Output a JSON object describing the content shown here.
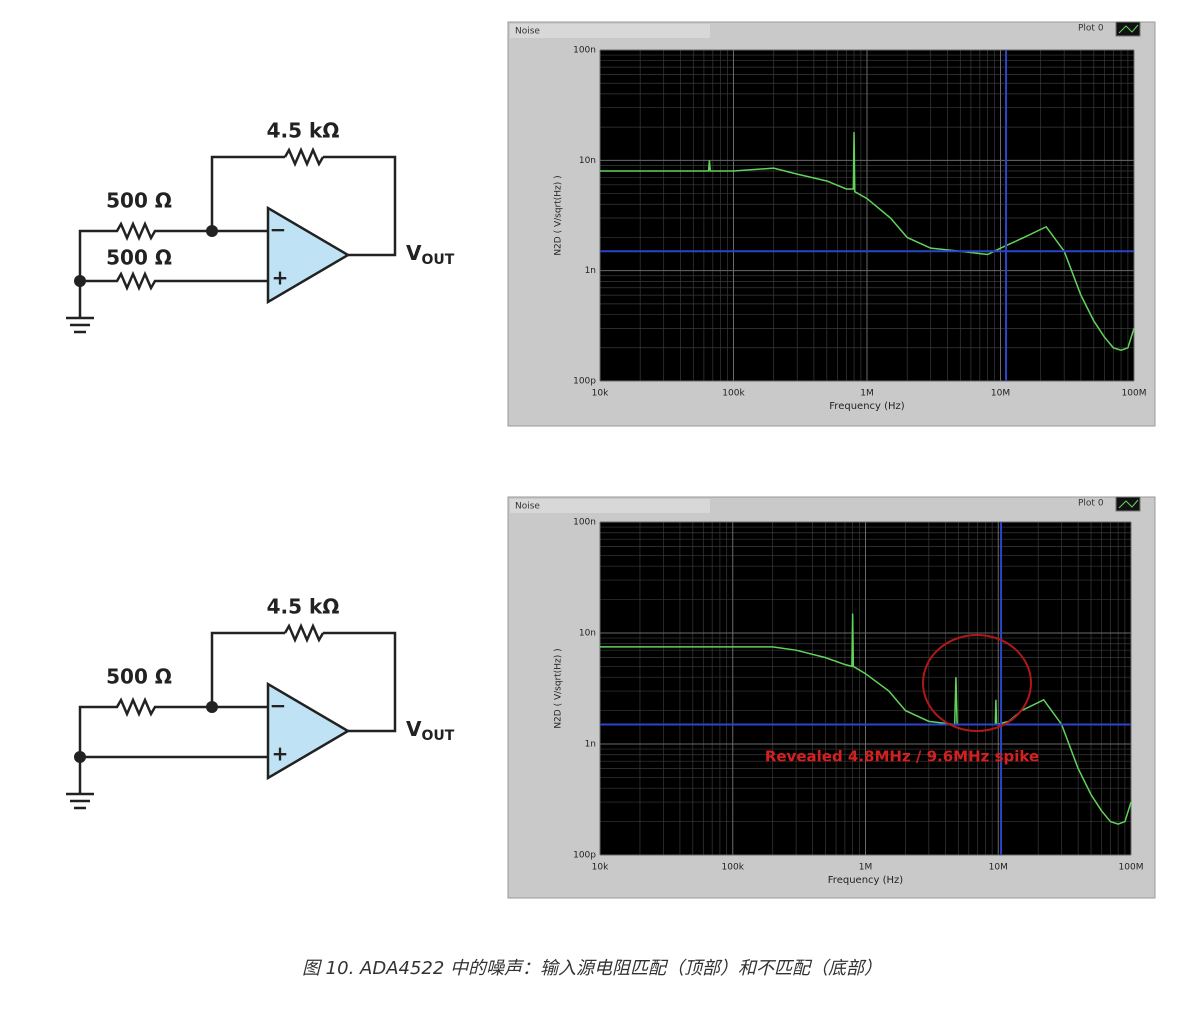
{
  "circuits": [
    {
      "feedback": "4.5 kΩ",
      "input": "500 Ω",
      "ground": "500 Ω",
      "inverting": "−",
      "noninverting": "+",
      "output": "V",
      "output_sub": "OUT"
    },
    {
      "feedback": "4.5 kΩ",
      "input": "500 Ω",
      "inverting": "−",
      "noninverting": "+",
      "output": "V",
      "output_sub": "OUT"
    }
  ],
  "chart_data": [
    {
      "type": "line",
      "title": "Noise",
      "xlabel": "Frequency (Hz)",
      "ylabel": "N2D ( V/sqrt(Hz) )",
      "xscale": "log",
      "yscale": "log",
      "grid": true,
      "minor_grid": true,
      "background": "#000000",
      "xlim": [
        10000,
        100000000
      ],
      "ylim": [
        1e-10,
        1e-07
      ],
      "xticks": [
        {
          "value": 10000,
          "label": "10k"
        },
        {
          "value": 100000,
          "label": "100k"
        },
        {
          "value": 1000000,
          "label": "1M"
        },
        {
          "value": 10000000,
          "label": "10M"
        },
        {
          "value": 100000000,
          "label": "100M"
        }
      ],
      "yticks": [
        {
          "value": 1e-10,
          "label": "100p"
        },
        {
          "value": 1e-09,
          "label": "1n"
        },
        {
          "value": 1e-08,
          "label": "10n"
        },
        {
          "value": 1e-07,
          "label": "100n"
        }
      ],
      "cursor": {
        "x": 11000000,
        "y": 1.5e-09,
        "color": "#2b45c8"
      },
      "x": [
        10000,
        20000,
        50000,
        65000,
        66000,
        67000,
        100000,
        200000,
        300000,
        500000,
        700000,
        790000,
        800000,
        810000,
        1000000,
        1500000,
        2000000,
        3000000,
        5000000,
        8000000,
        10000000,
        15000000,
        22000000,
        30000000,
        40000000,
        50000000,
        60000000,
        70000000,
        80000000,
        90000000,
        100000000
      ],
      "series": [
        {
          "name": "Plot 0",
          "color": "#62d35a",
          "values": [
            8e-09,
            8e-09,
            8e-09,
            8e-09,
            1e-08,
            8e-09,
            8e-09,
            8.5e-09,
            7.5e-09,
            6.5e-09,
            5.5e-09,
            5.5e-09,
            1.8e-08,
            5.2e-09,
            4.5e-09,
            3e-09,
            2e-09,
            1.6e-09,
            1.5e-09,
            1.4e-09,
            1.6e-09,
            2e-09,
            2.5e-09,
            1.5e-09,
            6e-10,
            3.5e-10,
            2.5e-10,
            2e-10,
            1.9e-10,
            2e-10,
            3e-10
          ]
        }
      ]
    },
    {
      "type": "line",
      "title": "Noise",
      "xlabel": "Frequency (Hz)",
      "ylabel": "N2D ( V/sqrt(Hz) )",
      "xscale": "log",
      "yscale": "log",
      "grid": true,
      "minor_grid": true,
      "background": "#000000",
      "xlim": [
        10000,
        100000000
      ],
      "ylim": [
        1e-10,
        1e-07
      ],
      "xticks": [
        {
          "value": 10000,
          "label": "10k"
        },
        {
          "value": 100000,
          "label": "100k"
        },
        {
          "value": 1000000,
          "label": "1M"
        },
        {
          "value": 10000000,
          "label": "10M"
        },
        {
          "value": 100000000,
          "label": "100M"
        }
      ],
      "yticks": [
        {
          "value": 1e-10,
          "label": "100p"
        },
        {
          "value": 1e-09,
          "label": "1n"
        },
        {
          "value": 1e-08,
          "label": "10n"
        },
        {
          "value": 1e-07,
          "label": "100n"
        }
      ],
      "cursor": {
        "x": 10500000,
        "y": 1.5e-09,
        "color": "#2b45c8"
      },
      "annotation": "Revealed 4.8MHz / 9.6MHz spike",
      "annotation_color": "#d42020",
      "x": [
        10000,
        20000,
        50000,
        100000,
        200000,
        300000,
        500000,
        700000,
        790000,
        800000,
        810000,
        1000000,
        1500000,
        2000000,
        3000000,
        4700000,
        4800000,
        4900000,
        7000000,
        9500000,
        9600000,
        9700000,
        12000000,
        15000000,
        22000000,
        30000000,
        40000000,
        50000000,
        60000000,
        70000000,
        80000000,
        90000000,
        100000000
      ],
      "series": [
        {
          "name": "Plot 0",
          "color": "#62d35a",
          "values": [
            7.5e-09,
            7.5e-09,
            7.5e-09,
            7.5e-09,
            7.5e-09,
            7e-09,
            6e-09,
            5.2e-09,
            5e-09,
            1.5e-08,
            5e-09,
            4.3e-09,
            3e-09,
            2e-09,
            1.6e-09,
            1.5e-09,
            4e-09,
            1.5e-09,
            1.5e-09,
            1.5e-09,
            2.5e-09,
            1.5e-09,
            1.6e-09,
            2e-09,
            2.5e-09,
            1.5e-09,
            6e-10,
            3.5e-10,
            2.5e-10,
            2e-10,
            1.9e-10,
            2e-10,
            3e-10
          ]
        }
      ]
    }
  ],
  "caption": "图 10. ADA4522 中的噪声：输入源电阻匹配（顶部）和不匹配（底部）"
}
